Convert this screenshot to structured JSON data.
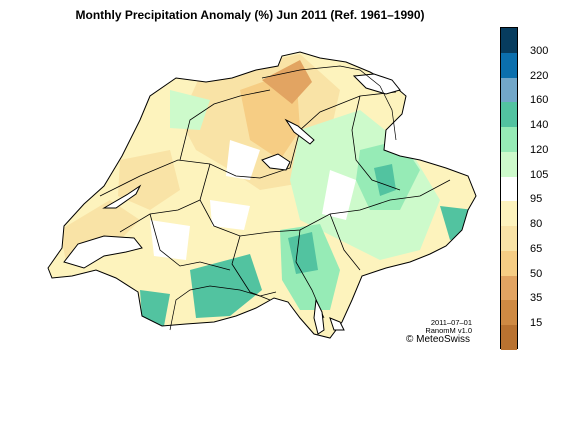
{
  "title": "Monthly Precipitation Anomaly (%) Jun 2011  (Ref. 1961–1990)",
  "legend": {
    "ticks": [
      "300",
      "220",
      "160",
      "140",
      "120",
      "105",
      "95",
      "80",
      "65",
      "50",
      "35",
      "15"
    ],
    "colors": [
      "#073c5e",
      "#0b6fad",
      "#72a7c9",
      "#52c3a0",
      "#96ebb6",
      "#cdfacb",
      "#ffffff",
      "#fdf3bd",
      "#f9e3a6",
      "#f6cd84",
      "#e2a462",
      "#cf8a43",
      "#b97230"
    ]
  },
  "stamp": {
    "date": "2011–07–01",
    "version": "RanomM v1.0",
    "credit": "© MeteoSwiss"
  }
}
